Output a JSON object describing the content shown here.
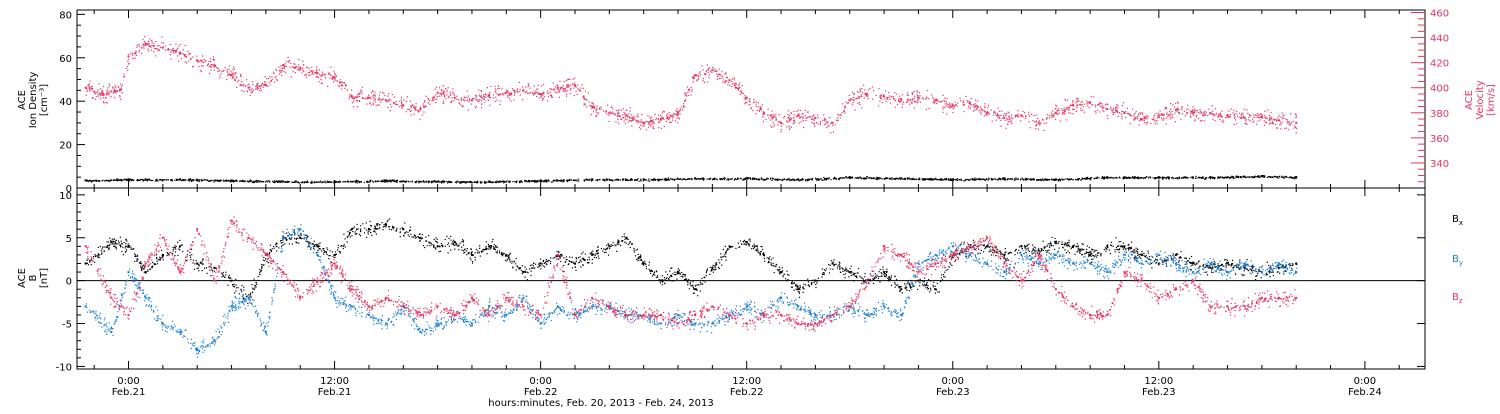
{
  "colors": {
    "density": "#e8335f",
    "velocity": "#000000",
    "bx": "#000000",
    "by": "#1a7fd6",
    "bz": "#e8335f",
    "axes": "#000000"
  },
  "chart_data": [
    {
      "type": "scatter",
      "panel": "top",
      "left_axis_title": [
        "ACE",
        "Ion Density",
        "[cm⁻³]"
      ],
      "right_axis_title": [
        "ACE",
        "Velocity",
        "[km/s]"
      ],
      "ylim_left": [
        0,
        82
      ],
      "ylim_right": [
        320,
        462
      ],
      "yticks_left": [
        "0",
        "20",
        "40",
        "60",
        "80"
      ],
      "yticks_right": [
        "340",
        "360",
        "380",
        "400",
        "420",
        "440",
        "460"
      ],
      "series": [
        {
          "axis": "left",
          "color_key": "velocity",
          "x": [
            -2.5,
            0,
            3,
            6,
            9,
            12,
            15,
            18,
            21,
            24,
            27,
            30,
            33,
            36,
            39,
            42,
            45,
            48,
            51,
            54,
            57,
            60,
            63,
            66,
            68
          ],
          "y": [
            3.5,
            4,
            4,
            3.5,
            3,
            3,
            3.5,
            3,
            3,
            3.5,
            4,
            4,
            4.5,
            4.5,
            4,
            5,
            4.5,
            4,
            4.5,
            4,
            5,
            5,
            5,
            5.5,
            5
          ]
        },
        {
          "axis": "right",
          "color_key": "density",
          "x": [
            -2.5,
            -1.5,
            -0.5,
            0,
            1,
            2,
            3,
            4,
            5,
            6,
            7,
            8,
            9,
            10,
            11,
            12,
            13,
            14,
            15,
            16,
            17,
            18,
            19,
            20,
            21,
            22,
            23,
            24,
            25,
            26,
            27,
            28,
            29,
            30,
            31,
            32,
            33,
            34,
            35,
            36,
            37,
            38,
            39,
            40,
            41,
            42,
            43,
            44,
            45,
            46,
            47,
            48,
            49,
            50,
            51,
            52,
            53,
            54,
            55,
            56,
            57,
            58,
            59,
            60,
            61,
            62,
            63,
            64,
            65,
            66,
            67,
            68
          ],
          "y": [
            400,
            395,
            398,
            425,
            435,
            432,
            428,
            422,
            418,
            410,
            400,
            402,
            418,
            416,
            412,
            408,
            393,
            392,
            390,
            386,
            383,
            396,
            392,
            390,
            394,
            396,
            398,
            395,
            400,
            402,
            385,
            380,
            378,
            372,
            375,
            380,
            410,
            414,
            406,
            392,
            380,
            372,
            378,
            376,
            372,
            390,
            395,
            393,
            390,
            392,
            390,
            386,
            388,
            380,
            376,
            378,
            372,
            380,
            386,
            388,
            383,
            380,
            375,
            378,
            382,
            380,
            380,
            378,
            376,
            377,
            374,
            372
          ]
        }
      ]
    },
    {
      "type": "scatter",
      "panel": "bottom",
      "left_axis_title": [
        "ACE",
        "B",
        "[nT]"
      ],
      "ylim": [
        -10.3,
        10.8
      ],
      "yticks": [
        "-10",
        "-5",
        "0",
        "5",
        "10"
      ],
      "zero_line": true,
      "legend": [
        {
          "label": "B",
          "sub": "x",
          "color_key": "bx"
        },
        {
          "label": "B",
          "sub": "y",
          "color_key": "by"
        },
        {
          "label": "B",
          "sub": "z",
          "color_key": "bz"
        }
      ],
      "series": [
        {
          "name": "Bx",
          "color_key": "bx",
          "x": [
            -2.5,
            -1,
            0,
            1,
            2,
            3,
            4,
            5,
            6,
            7,
            8,
            9,
            10,
            11,
            12,
            13,
            14,
            15,
            16,
            17,
            18,
            19,
            20,
            21,
            22,
            23,
            24,
            25,
            26,
            27,
            28,
            29,
            30,
            31,
            32,
            33,
            34,
            35,
            36,
            37,
            38,
            39,
            40,
            41,
            42,
            43,
            44,
            45,
            46,
            47,
            48,
            49,
            50,
            51,
            52,
            53,
            54,
            55,
            56,
            57,
            58,
            59,
            60,
            61,
            62,
            63,
            64,
            65,
            66,
            67,
            68
          ],
          "y": [
            2,
            4.5,
            4,
            1,
            3,
            4,
            2,
            1.5,
            0,
            -2,
            3,
            5,
            5,
            4,
            3,
            6,
            6,
            6.5,
            6,
            5,
            4,
            4.5,
            3,
            4,
            3,
            1,
            2,
            3,
            2,
            3,
            4,
            5,
            2,
            0,
            1,
            -1,
            1.5,
            4,
            4.5,
            3,
            1,
            -1,
            0,
            2,
            1,
            0,
            1,
            -1,
            0,
            -1,
            3,
            4,
            4,
            3,
            4,
            3.5,
            4.5,
            4,
            3,
            4,
            4,
            3,
            2,
            3,
            2,
            1.5,
            2,
            1.5,
            1,
            1.5,
            2
          ]
        },
        {
          "name": "By",
          "color_key": "by",
          "x": [
            -2.5,
            -1,
            0,
            1,
            2,
            3,
            4,
            5,
            6,
            7,
            8,
            9,
            10,
            11,
            12,
            13,
            14,
            15,
            16,
            17,
            18,
            19,
            20,
            21,
            22,
            23,
            24,
            25,
            26,
            27,
            28,
            29,
            30,
            31,
            32,
            33,
            34,
            35,
            36,
            37,
            38,
            39,
            40,
            41,
            42,
            43,
            44,
            45,
            46,
            47,
            48,
            49,
            50,
            51,
            52,
            53,
            54,
            55,
            56,
            57,
            58,
            59,
            60,
            61,
            62,
            63,
            64,
            65,
            66,
            67,
            68
          ],
          "y": [
            -3,
            -6,
            1,
            -2,
            -5,
            -6,
            -8,
            -7,
            -3,
            -2,
            -6,
            5,
            6,
            3,
            -2,
            -3,
            -4,
            -5,
            -3,
            -6,
            -5,
            -4,
            -5,
            -3,
            -4,
            -2,
            -5,
            -3,
            -4,
            -3,
            -3,
            -4,
            -4,
            -5,
            -4,
            -5,
            -5,
            -4,
            -3,
            -4,
            -2,
            -3,
            -4,
            -4,
            -3,
            -4,
            -3,
            -4,
            2,
            3,
            4,
            3,
            2,
            1,
            3,
            2,
            3,
            2,
            2,
            1,
            3,
            2,
            3,
            2,
            1,
            2,
            1,
            2,
            1,
            2,
            1
          ]
        },
        {
          "name": "Bz",
          "color_key": "bz",
          "x": [
            -2.5,
            -1,
            0,
            1,
            2,
            3,
            4,
            5,
            6,
            7,
            8,
            9,
            10,
            11,
            12,
            13,
            14,
            15,
            16,
            17,
            18,
            19,
            20,
            21,
            22,
            23,
            24,
            25,
            26,
            27,
            28,
            29,
            30,
            31,
            32,
            33,
            34,
            35,
            36,
            37,
            38,
            39,
            40,
            41,
            42,
            43,
            44,
            45,
            46,
            47,
            48,
            49,
            50,
            51,
            52,
            53,
            54,
            55,
            56,
            57,
            58,
            59,
            60,
            61,
            62,
            63,
            64,
            65,
            66,
            67,
            68
          ],
          "y": [
            4,
            -2,
            -4,
            2,
            5,
            1,
            6,
            0,
            7,
            5,
            3,
            1,
            -2,
            0,
            2,
            -1,
            -3,
            -2,
            -3,
            -4,
            -3,
            -4,
            -2,
            -4,
            -2,
            -3,
            -4,
            3,
            -4,
            -2,
            -3,
            -4,
            -4,
            -4,
            -5,
            -4,
            -3,
            -4,
            -5,
            -4,
            -4,
            -5,
            -5,
            -4,
            -3,
            0,
            4,
            3,
            1,
            2,
            3,
            4,
            5,
            2,
            0,
            3,
            -1,
            -3,
            -4,
            -4,
            1,
            0,
            -2,
            -1,
            0,
            -3,
            -3,
            -3,
            -2,
            -2,
            -2
          ]
        }
      ]
    }
  ],
  "x_axis": {
    "xlim": [
      -3,
      75.5
    ],
    "ticks": [
      {
        "x": 0,
        "time": "0:00",
        "date": "Feb.21"
      },
      {
        "x": 12,
        "time": "12:00",
        "date": "Feb.21"
      },
      {
        "x": 24,
        "time": "0:00",
        "date": "Feb.22"
      },
      {
        "x": 36,
        "time": "12:00",
        "date": "Feb.22"
      },
      {
        "x": 48,
        "time": "0:00",
        "date": "Feb.23"
      },
      {
        "x": 60,
        "time": "12:00",
        "date": "Feb.23"
      },
      {
        "x": 72,
        "time": "0:00",
        "date": "Feb.24"
      }
    ],
    "label": "hours:minutes, Feb. 20, 2013 - Feb. 24, 2013"
  }
}
